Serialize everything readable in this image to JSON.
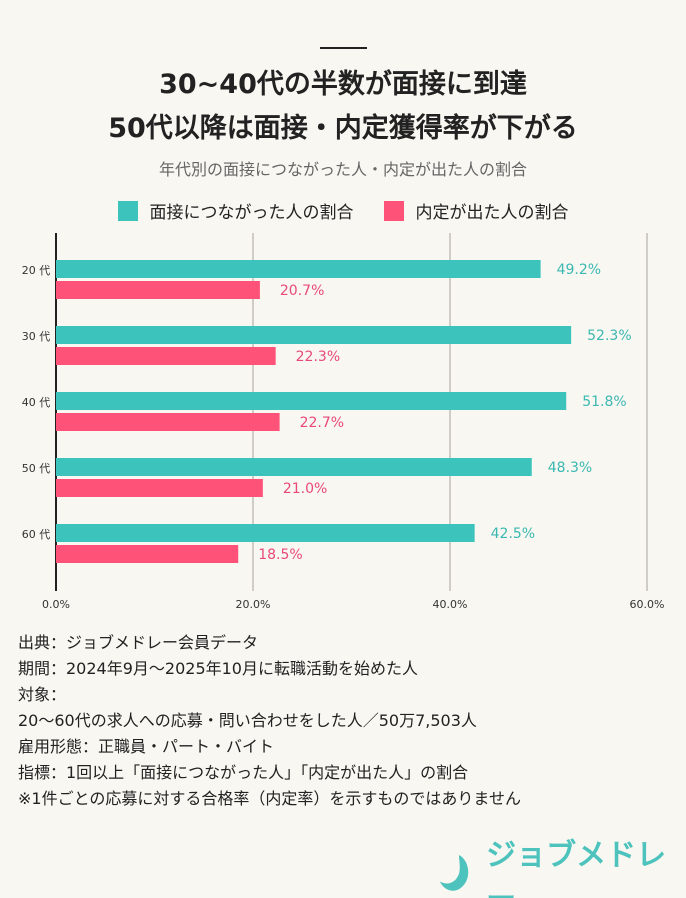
{
  "title_lines": [
    "30~40代の半数が面接に到達",
    "50代以降は面接・内定獲得率が下がる"
  ],
  "chart_data": {
    "type": "bar",
    "orientation": "horizontal",
    "subtitle": "年代別の面接につながった人・内定が出た人の割合",
    "categories": [
      "20 代",
      "30 代",
      "40 代",
      "50 代",
      "60 代"
    ],
    "series": [
      {
        "name": "面接につながった人の割合",
        "color": "#3cc3bb",
        "label_color": "#3bb8b1",
        "values": [
          49.2,
          52.3,
          51.8,
          48.3,
          42.5
        ]
      },
      {
        "name": "内定が出た人の割合",
        "color": "#ff5279",
        "label_color": "#e8497a",
        "values": [
          20.7,
          22.3,
          22.7,
          21.0,
          18.5
        ]
      }
    ],
    "xlim": [
      0,
      60
    ],
    "xticks": [
      "0.0%",
      "20.0%",
      "40.0%",
      "60.0%"
    ],
    "grid": true,
    "legend": "top"
  },
  "notes": [
    "出典：ジョブメドレー会員データ",
    "期間：2024年9月～2025年10月に転職活動を始めた人",
    "対象：",
    "20～60代の求人への応募・問い合わせをした人／50万7,503人",
    "雇用形態：正職員・パート・バイト",
    "指標：1回以上「面接につながった人」「内定が出た人」の割合",
    "※1件ごとの応募に対する合格率（内定率）を示すものではありません"
  ],
  "logo": {
    "text": "ジョブメドレー",
    "color": "#4ec3bd"
  }
}
